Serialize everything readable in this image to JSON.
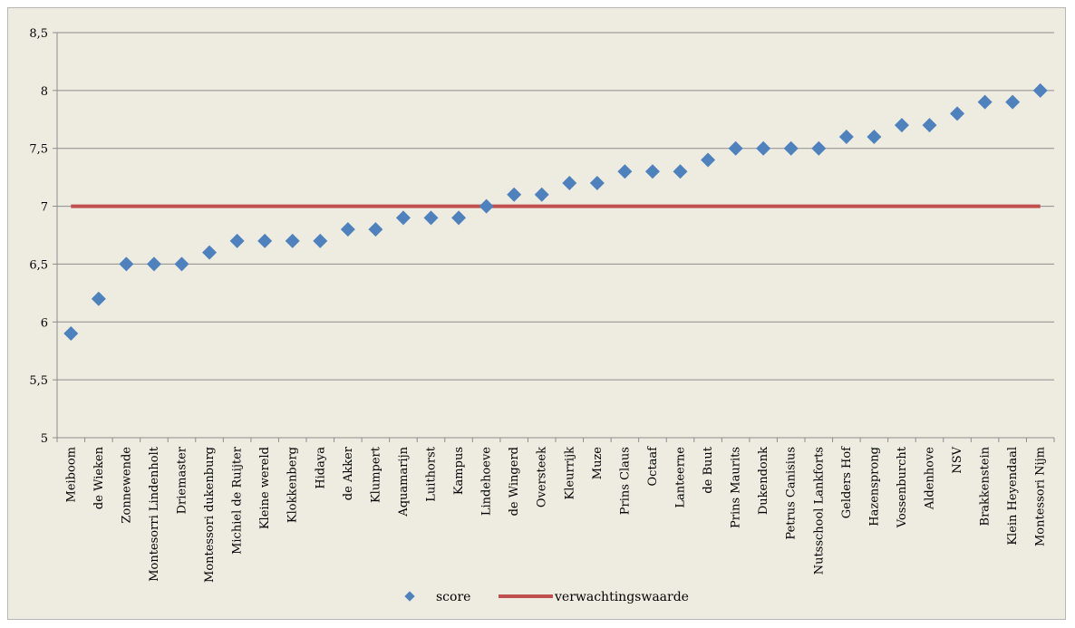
{
  "chart_data": {
    "type": "scatter",
    "categories": [
      "Meiboom",
      "de Wieken",
      "Zonnewende",
      "Montesorri Lindenholt",
      "Driemaster",
      "Montessori dukenburg",
      "Michiel de Ruijter",
      "Kleine wereld",
      "Klokkenberg",
      "Hidaya",
      "de Akker",
      "Klumpert",
      "Aquamarijn",
      "Luithorst",
      "Kampus",
      "Lindehoeve",
      "de Wingerd",
      "Oversteek",
      "Kleurrijk",
      "Muze",
      "Prins Claus",
      "Octaaf",
      "Lanteerne",
      "de Buut",
      "Prins Maurits",
      "Dukendonk",
      "Petrus Canisius",
      "Nutsschool Lankforts",
      "Gelders Hof",
      "Hazensprong",
      "Vossenburcht",
      "Aldenhove",
      "NSV",
      "Brakkenstein",
      "Klein Heyendaal",
      "Montessori Nijm"
    ],
    "series": [
      {
        "name": "score",
        "kind": "marker",
        "color": "#4f81bd",
        "values": [
          5.9,
          6.2,
          6.5,
          6.5,
          6.5,
          6.6,
          6.7,
          6.7,
          6.7,
          6.7,
          6.8,
          6.8,
          6.9,
          6.9,
          6.9,
          7.0,
          7.1,
          7.1,
          7.2,
          7.2,
          7.3,
          7.3,
          7.3,
          7.4,
          7.5,
          7.5,
          7.5,
          7.5,
          7.6,
          7.6,
          7.7,
          7.7,
          7.8,
          7.9,
          7.9,
          8.0
        ]
      },
      {
        "name": "verwachtingswaarde",
        "kind": "line",
        "color": "#c0504d",
        "values": [
          7,
          7,
          7,
          7,
          7,
          7,
          7,
          7,
          7,
          7,
          7,
          7,
          7,
          7,
          7,
          7,
          7,
          7,
          7,
          7,
          7,
          7,
          7,
          7,
          7,
          7,
          7,
          7,
          7,
          7,
          7,
          7,
          7,
          7,
          7,
          7
        ]
      }
    ],
    "ylim": [
      5,
      8.5
    ],
    "yticks": [
      "5",
      "5,5",
      "6",
      "6,5",
      "7",
      "7,5",
      "8",
      "8,5"
    ],
    "grid": true,
    "legend_position": "bottom",
    "title": "",
    "xlabel": "",
    "ylabel": ""
  }
}
